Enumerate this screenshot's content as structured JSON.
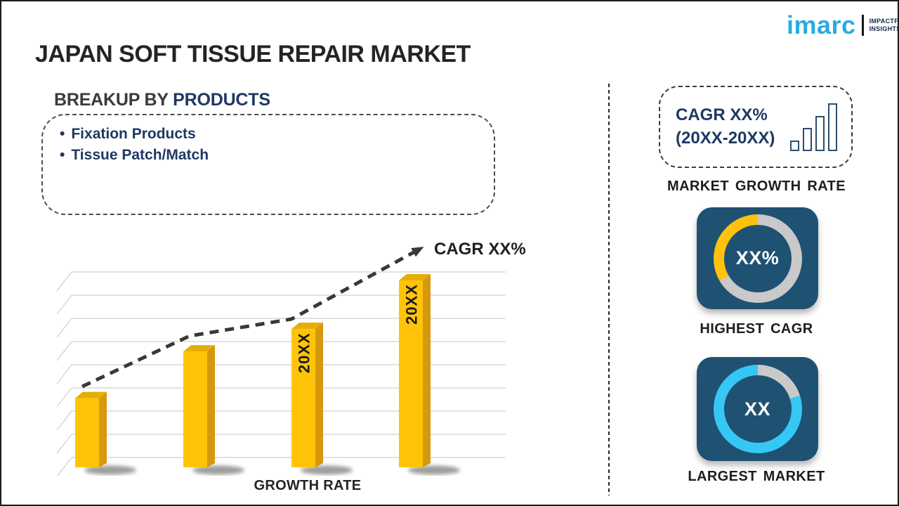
{
  "header": {
    "title": "JAPAN SOFT TISSUE REPAIR MARKET",
    "logo": {
      "brand": "imarc",
      "tagline_line1": "IMPACTFUL",
      "tagline_line2": "INSIGHTS"
    }
  },
  "breakup": {
    "heading_prefix": "BREAKUP BY ",
    "heading_highlight": "PRODUCTS",
    "bullet_char": "•",
    "items": [
      {
        "label": "Fixation Products"
      },
      {
        "label": "Tissue Patch/Match"
      }
    ]
  },
  "chart_data": {
    "type": "bar",
    "title": "",
    "xlabel": "GROWTH RATE",
    "ylabel": "",
    "trend_label": "CAGR XX%",
    "grid": true,
    "units": "relative-height-percent-of-tallest-bar",
    "bars": [
      {
        "label": "",
        "value": 37
      },
      {
        "label": "",
        "value": 62
      },
      {
        "label": "20XX",
        "value": 74
      },
      {
        "label": "20XX",
        "value": 100
      }
    ],
    "colors": {
      "front": "#FFC408",
      "side": "#D6990E",
      "top": "#E5AD06",
      "trend": "#383838"
    }
  },
  "right_panel": {
    "cagr_card": {
      "line1": "CAGR XX%",
      "line2": "(20XX-20XX)",
      "icon": "bar-chart-icon"
    },
    "market_growth_label": "MARKET GROWTH RATE",
    "highest_cagr": {
      "value": "XX%",
      "label": "HIGHEST CAGR",
      "ring_color": "#FFC20E",
      "gray_deg": 240
    },
    "largest_market": {
      "value": "XX",
      "label": "LARGEST MARKET",
      "ring_color": "#35C8F5",
      "gray_deg": 72
    }
  },
  "colors": {
    "accent_navy": "#1F3864",
    "square_navy": "#1F5173",
    "ring_gray": "#C9C9C9",
    "logo_blue": "#29ABE2"
  }
}
